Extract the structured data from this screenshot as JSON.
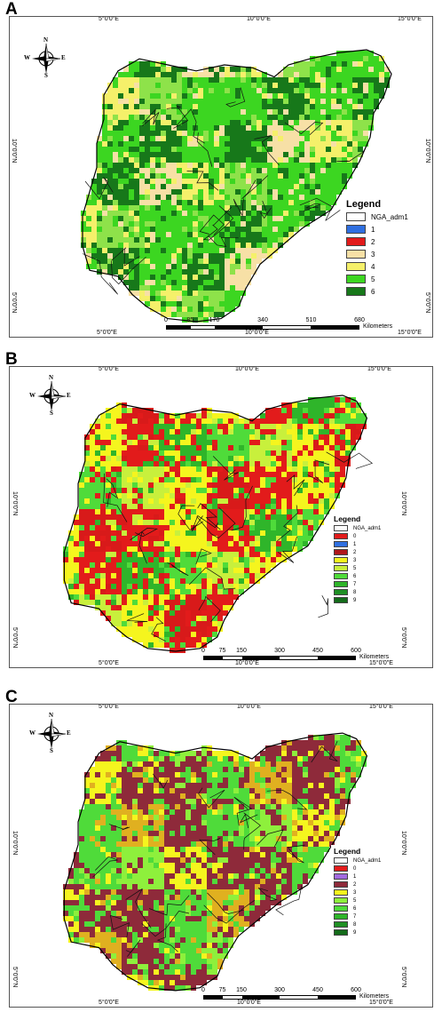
{
  "panels": [
    {
      "letter": "A",
      "x_ticks_top": [
        "5°0'0\"E",
        "10°0'0\"E",
        "15°0'0\"E"
      ],
      "x_ticks_bottom": [
        "5°0'0\"E",
        "10°0'0\"E",
        "15°0'0\"E"
      ],
      "y_ticks": [
        "10°0'0\"N",
        "5°0'0\"N"
      ],
      "compass": {
        "n": "N",
        "s": "S",
        "e": "E",
        "w": "W"
      },
      "legend": {
        "title": "Legend",
        "items": [
          {
            "label": "NGA_adm1",
            "color": "#ffffff"
          },
          {
            "label": "1",
            "color": "#2f6fe0"
          },
          {
            "label": "2",
            "color": "#e21b1b"
          },
          {
            "label": "3",
            "color": "#f7e0a6"
          },
          {
            "label": "4",
            "color": "#f5f06a"
          },
          {
            "label": "5",
            "color": "#3cd621"
          },
          {
            "label": "6",
            "color": "#17781a"
          }
        ]
      },
      "scale": {
        "ticks": [
          "0",
          "85",
          "170",
          "340",
          "510",
          "680"
        ],
        "unit": "Kilometers"
      },
      "palette": [
        "#17781a",
        "#3cd621",
        "#3cd621",
        "#8ee24a",
        "#f5f06a",
        "#f7e0a6",
        "#17781a",
        "#3cd621"
      ]
    },
    {
      "letter": "B",
      "x_ticks_top": [
        "5°0'0\"E",
        "10°0'0\"E",
        "15°0'0\"E"
      ],
      "x_ticks_bottom": [
        "5°0'0\"E",
        "10°0'0\"E",
        "15°0'0\"E"
      ],
      "y_ticks": [
        "10°0'0\"N",
        "5°0'0\"N"
      ],
      "compass": {
        "n": "N",
        "s": "S",
        "e": "E",
        "w": "W"
      },
      "legend": {
        "title": "Legend",
        "items": [
          {
            "label": "NGA_adm1",
            "color": "#ffffff"
          },
          {
            "label": "0",
            "color": "#e21b1b"
          },
          {
            "label": "1",
            "color": "#2f6fe0"
          },
          {
            "label": "2",
            "color": "#b0171b"
          },
          {
            "label": "3",
            "color": "#f5f51e"
          },
          {
            "label": "5",
            "color": "#c8f03c"
          },
          {
            "label": "6",
            "color": "#4fdb3a"
          },
          {
            "label": "7",
            "color": "#2fb52a"
          },
          {
            "label": "8",
            "color": "#1f8f24"
          },
          {
            "label": "9",
            "color": "#146b1a"
          }
        ]
      },
      "scale": {
        "ticks": [
          "0",
          "75",
          "150",
          "300",
          "450",
          "600"
        ],
        "unit": "Kilometers"
      },
      "palette": [
        "#e21b1b",
        "#d81a1a",
        "#f5f51e",
        "#c8f03c",
        "#4fdb3a",
        "#2fb52a",
        "#e21b1b",
        "#f5f51e"
      ]
    },
    {
      "letter": "C",
      "x_ticks_top": [
        "5°0'0\"E",
        "10°0'0\"E",
        "15°0'0\"E"
      ],
      "x_ticks_bottom": [
        "5°0'0\"E",
        "10°0'0\"E",
        "15°0'0\"E"
      ],
      "y_ticks": [
        "10°0'0\"N",
        "5°0'0\"N"
      ],
      "compass": {
        "n": "N",
        "s": "S",
        "e": "E",
        "w": "W"
      },
      "legend": {
        "title": "Legend",
        "items": [
          {
            "label": "NGA_adm1",
            "color": "#ffffff"
          },
          {
            "label": "0",
            "color": "#e21b1b"
          },
          {
            "label": "1",
            "color": "#a26be0"
          },
          {
            "label": "2",
            "color": "#8e2a3a"
          },
          {
            "label": "3",
            "color": "#f5f51e"
          },
          {
            "label": "5",
            "color": "#8ef03c"
          },
          {
            "label": "6",
            "color": "#4fdb3a"
          },
          {
            "label": "7",
            "color": "#2fb52a"
          },
          {
            "label": "8",
            "color": "#1f8f24"
          },
          {
            "label": "9",
            "color": "#146b1a"
          }
        ]
      },
      "scale": {
        "ticks": [
          "0",
          "75",
          "150",
          "300",
          "450",
          "600"
        ],
        "unit": "Kilometers"
      },
      "palette": [
        "#8e2a3a",
        "#8e2a3a",
        "#f5f51e",
        "#8ef03c",
        "#4fdb3a",
        "#8e2a3a",
        "#e0b020",
        "#4fdb3a"
      ]
    }
  ]
}
